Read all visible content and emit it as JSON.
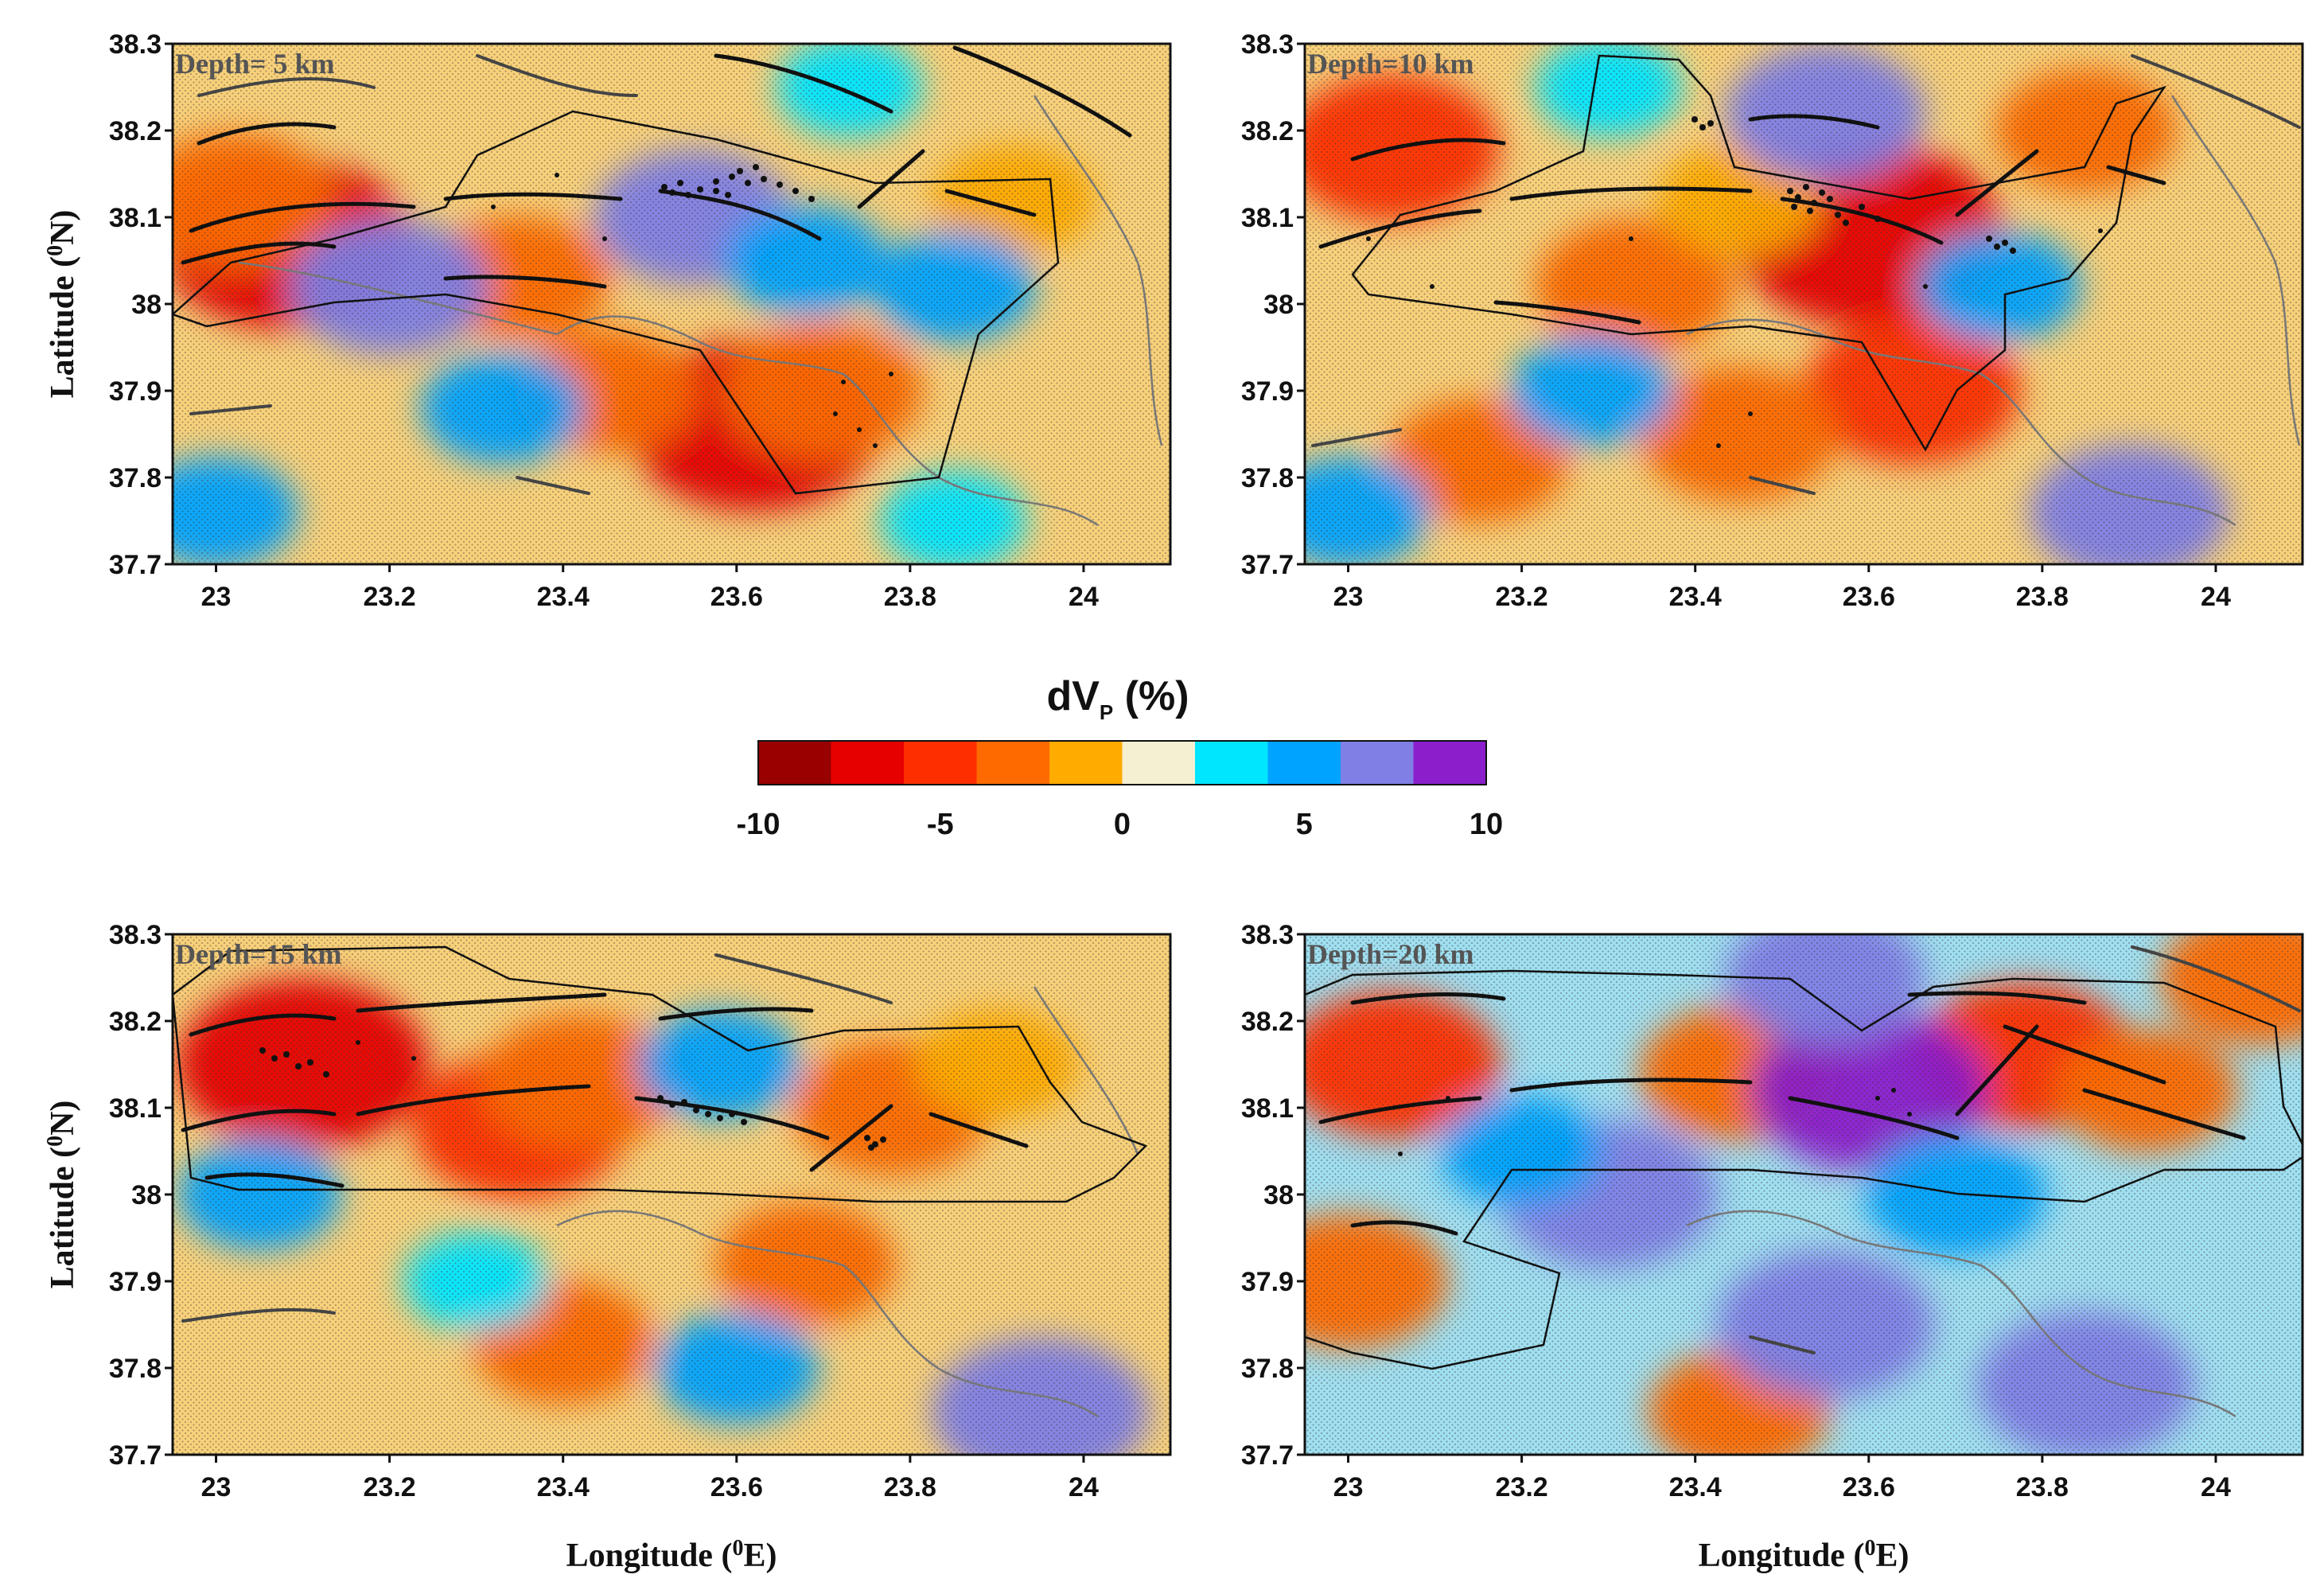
{
  "chart_data": [
    {
      "type": "heatmap",
      "depth_label": "Depth= 5 km",
      "xlabel": "",
      "ylabel": "Latitude (⁰N)",
      "ylabel_main": "Latitude (",
      "ylabel_sup": "0",
      "ylabel_end": "N)",
      "xlim": [
        22.95,
        24.1
      ],
      "ylim": [
        37.7,
        38.3
      ],
      "xticks": [
        "23",
        "23.2",
        "23.4",
        "23.6",
        "23.8",
        "24"
      ],
      "yticks": [
        "38.3",
        "38.2",
        "38.1",
        "38",
        "37.9",
        "37.8",
        "37.7"
      ],
      "anomalies": [
        {
          "lon": 23.08,
          "lat": 38.07,
          "dvp": -8
        },
        {
          "lon": 23.02,
          "lat": 38.12,
          "dvp": -5
        },
        {
          "lon": 23.62,
          "lat": 37.86,
          "dvp": -8
        },
        {
          "lon": 23.7,
          "lat": 37.9,
          "dvp": -5
        },
        {
          "lon": 23.35,
          "lat": 38.03,
          "dvp": -4
        },
        {
          "lon": 23.45,
          "lat": 37.9,
          "dvp": -4
        },
        {
          "lon": 23.92,
          "lat": 38.12,
          "dvp": -3
        },
        {
          "lon": 23.55,
          "lat": 38.1,
          "dvp": 5
        },
        {
          "lon": 23.2,
          "lat": 38.02,
          "dvp": 5
        },
        {
          "lon": 23.68,
          "lat": 38.05,
          "dvp": 3
        },
        {
          "lon": 23.85,
          "lat": 38.02,
          "dvp": 3
        },
        {
          "lon": 23.33,
          "lat": 37.88,
          "dvp": 3
        },
        {
          "lon": 23.0,
          "lat": 37.76,
          "dvp": 3
        },
        {
          "lon": 23.85,
          "lat": 37.75,
          "dvp": 2
        },
        {
          "lon": 23.73,
          "lat": 38.25,
          "dvp": 2
        }
      ]
    },
    {
      "type": "heatmap",
      "depth_label": "Depth=10 km",
      "xlabel": "",
      "ylabel": "",
      "xlim": [
        22.95,
        24.1
      ],
      "ylim": [
        37.7,
        38.3
      ],
      "xticks": [
        "23",
        "23.2",
        "23.4",
        "23.6",
        "23.8",
        "24"
      ],
      "yticks": [
        "38.3",
        "38.2",
        "38.1",
        "38",
        "37.9",
        "37.8",
        "37.7"
      ],
      "anomalies": [
        {
          "lon": 23.6,
          "lat": 38.08,
          "dvp": -9
        },
        {
          "lon": 23.05,
          "lat": 38.18,
          "dvp": -6
        },
        {
          "lon": 23.65,
          "lat": 37.9,
          "dvp": -6
        },
        {
          "lon": 23.45,
          "lat": 37.85,
          "dvp": -5
        },
        {
          "lon": 23.33,
          "lat": 38.02,
          "dvp": -5
        },
        {
          "lon": 23.15,
          "lat": 37.82,
          "dvp": -4
        },
        {
          "lon": 23.45,
          "lat": 38.12,
          "dvp": -3
        },
        {
          "lon": 23.85,
          "lat": 38.2,
          "dvp": -4
        },
        {
          "lon": 23.55,
          "lat": 38.22,
          "dvp": 5
        },
        {
          "lon": 23.9,
          "lat": 37.76,
          "dvp": 5
        },
        {
          "lon": 23.28,
          "lat": 37.9,
          "dvp": 3
        },
        {
          "lon": 23.0,
          "lat": 37.76,
          "dvp": 3
        },
        {
          "lon": 23.75,
          "lat": 38.02,
          "dvp": 3
        },
        {
          "lon": 23.3,
          "lat": 38.25,
          "dvp": 2
        }
      ]
    },
    {
      "type": "heatmap",
      "depth_label": "Depth=15 km",
      "xlabel": "Longitude (⁰E)",
      "xlabel_main": "Longitude (",
      "xlabel_sup": "0",
      "xlabel_end": "E)",
      "ylabel": "Latitude (⁰N)",
      "ylabel_main": "Latitude (",
      "ylabel_sup": "0",
      "ylabel_end": "N)",
      "xlim": [
        22.95,
        24.1
      ],
      "ylim": [
        37.7,
        38.3
      ],
      "xticks": [
        "23",
        "23.2",
        "23.4",
        "23.6",
        "23.8",
        "24"
      ],
      "yticks": [
        "38.3",
        "38.2",
        "38.1",
        "38",
        "37.9",
        "37.8",
        "37.7"
      ],
      "anomalies": [
        {
          "lon": 23.1,
          "lat": 38.15,
          "dvp": -8
        },
        {
          "lon": 23.35,
          "lat": 38.08,
          "dvp": -6
        },
        {
          "lon": 23.42,
          "lat": 38.13,
          "dvp": -5
        },
        {
          "lon": 23.78,
          "lat": 38.1,
          "dvp": -5
        },
        {
          "lon": 23.4,
          "lat": 37.83,
          "dvp": -4
        },
        {
          "lon": 23.68,
          "lat": 37.92,
          "dvp": -4
        },
        {
          "lon": 23.9,
          "lat": 38.15,
          "dvp": -3
        },
        {
          "lon": 23.58,
          "lat": 38.15,
          "dvp": 3
        },
        {
          "lon": 23.95,
          "lat": 37.75,
          "dvp": 6
        },
        {
          "lon": 23.05,
          "lat": 38.0,
          "dvp": 3
        },
        {
          "lon": 23.3,
          "lat": 37.9,
          "dvp": 2
        },
        {
          "lon": 23.6,
          "lat": 37.8,
          "dvp": 3
        }
      ]
    },
    {
      "type": "heatmap",
      "depth_label": "Depth=20 km",
      "xlabel": "Longitude (⁰E)",
      "xlabel_main": "Longitude (",
      "xlabel_sup": "0",
      "xlabel_end": "E)",
      "ylabel": "",
      "xlim": [
        22.95,
        24.1
      ],
      "ylim": [
        37.7,
        38.3
      ],
      "xticks": [
        "23",
        "23.2",
        "23.4",
        "23.6",
        "23.8",
        "24"
      ],
      "yticks": [
        "38.3",
        "38.2",
        "38.1",
        "38",
        "37.9",
        "37.8",
        "37.7"
      ],
      "anomalies": [
        {
          "lon": 23.05,
          "lat": 38.15,
          "dvp": -6
        },
        {
          "lon": 23.45,
          "lat": 38.14,
          "dvp": -5
        },
        {
          "lon": 23.78,
          "lat": 38.16,
          "dvp": -6
        },
        {
          "lon": 23.92,
          "lat": 38.12,
          "dvp": -4
        },
        {
          "lon": 23.0,
          "lat": 37.9,
          "dvp": -5
        },
        {
          "lon": 23.45,
          "lat": 37.75,
          "dvp": -4
        },
        {
          "lon": 24.05,
          "lat": 38.25,
          "dvp": -5
        },
        {
          "lon": 23.6,
          "lat": 38.12,
          "dvp": 7
        },
        {
          "lon": 23.55,
          "lat": 37.85,
          "dvp": 6
        },
        {
          "lon": 23.85,
          "lat": 37.78,
          "dvp": 6
        },
        {
          "lon": 23.3,
          "lat": 38.0,
          "dvp": 6
        },
        {
          "lon": 23.2,
          "lat": 38.05,
          "dvp": 3
        },
        {
          "lon": 23.7,
          "lat": 38.0,
          "dvp": 4
        },
        {
          "lon": 23.55,
          "lat": 38.25,
          "dvp": 5
        }
      ]
    }
  ],
  "colorbar": {
    "title": "dV",
    "subscript": "P",
    "unit": " (%)",
    "ticks": [
      "-10",
      "-5",
      "0",
      "5",
      "10"
    ],
    "min": -10,
    "max": 10,
    "colors": [
      "#990000",
      "#e60000",
      "#ff2e00",
      "#ff6a00",
      "#ffab00",
      "#f5f0d2",
      "#00e6ff",
      "#00a3ff",
      "#7f7fe6",
      "#8c1fcc",
      "#000066"
    ]
  }
}
